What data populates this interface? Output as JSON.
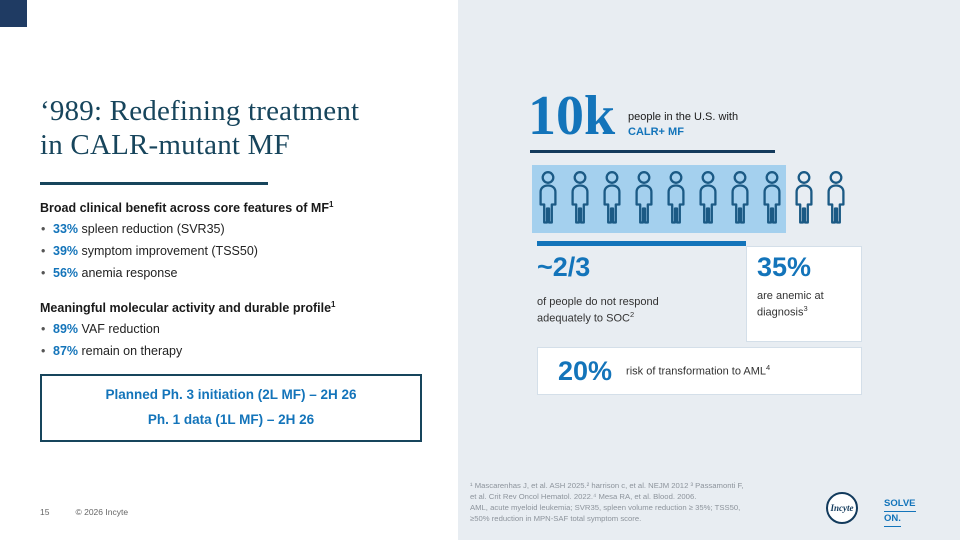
{
  "colors": {
    "accent_blue": "#1374ba",
    "dark_teal": "#17455c",
    "dark_navy": "#123a5c",
    "panel_gray": "#e8edf2",
    "highlight_blue": "#a4d0ee",
    "corner_square": "#1f3b63"
  },
  "slide": {
    "page_number": "15",
    "copyright": "© 2026 Incyte"
  },
  "left": {
    "title_line1": "‘989: Redefining treatment",
    "title_line2": "in CALR-mutant MF",
    "benefit": {
      "heading": "Broad clinical benefit across core features of MF",
      "heading_sup": "1",
      "bullets": [
        {
          "pct": "33%",
          "text": " spleen reduction (SVR35)"
        },
        {
          "pct": "39%",
          "text": " symptom improvement (TSS50)"
        },
        {
          "pct": "56%",
          "text": " anemia response"
        }
      ]
    },
    "molecular": {
      "heading": "Meaningful molecular activity and durable profile",
      "heading_sup": "1",
      "bullets": [
        {
          "pct": "89%",
          "text": " VAF reduction"
        },
        {
          "pct": "87%",
          "text": " remain on therapy"
        }
      ]
    },
    "phase_box": {
      "line1": "Planned Ph. 3 initiation (2L MF) – 2H 26",
      "line2": "Ph. 1 data (1L MF) – 2H 26"
    }
  },
  "right": {
    "big_number": "10k",
    "big_caption_line1": "people in the U.S. with",
    "big_caption_line2": "CALR+ MF",
    "people": {
      "total": 10,
      "highlighted": 8
    },
    "stat1": {
      "value": "~2/3",
      "caption": "of people do not respond adequately to SOC",
      "sup": "2"
    },
    "stat2": {
      "value": "35%",
      "caption": "are anemic at diagnosis",
      "sup": "3"
    },
    "stat3": {
      "value": "20%",
      "caption": "risk of transformation to AML",
      "sup": "4"
    }
  },
  "footnotes": {
    "line1": "¹ Mascarenhas J, et al. ASH 2025.² harrison c, et al. NEJM 2012 ³ Passamonti F,",
    "line2": "et al. Crit Rev Oncol Hematol. 2022.⁴ Mesa RA, et al. Blood. 2006.",
    "line3": "AML, acute myeloid leukemia; SVR35, spleen volume reduction ≥ 35%; TSS50,",
    "line4": "≥50% reduction in MPN-SAF total symptom score."
  },
  "branding": {
    "logo_text": "Incyte",
    "tagline_line1": "SOLVE",
    "tagline_line2": "ON."
  }
}
